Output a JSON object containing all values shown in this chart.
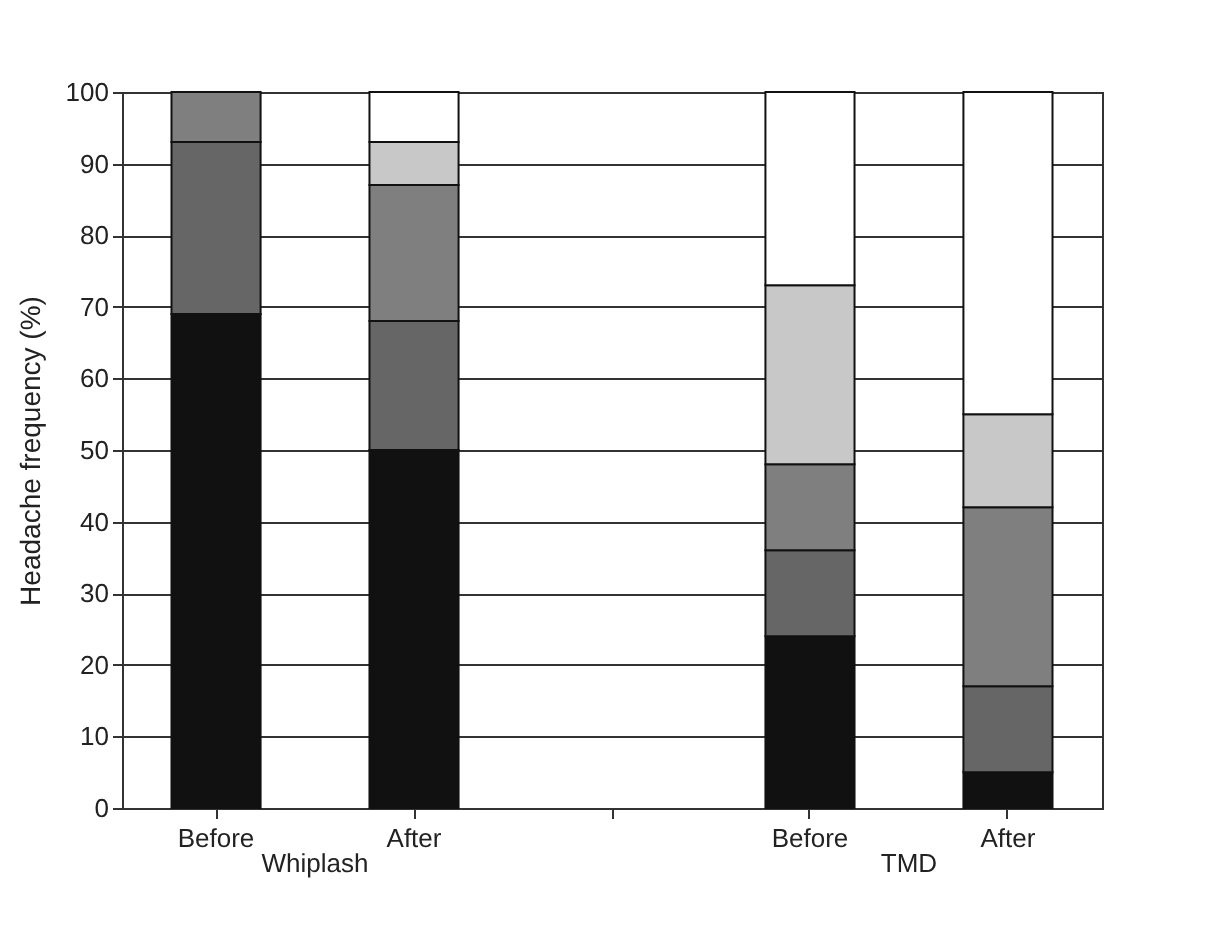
{
  "chart_data": {
    "type": "bar",
    "stacked": true,
    "ylabel": "Headache frequency (%)",
    "categories": [
      "Before",
      "After",
      null,
      "Before",
      "After"
    ],
    "series": [
      {
        "color": "#111111",
        "values": [
          69,
          50,
          null,
          24,
          5
        ]
      },
      {
        "color": "#666666",
        "values": [
          24,
          18,
          null,
          12,
          12
        ]
      },
      {
        "color": "#7f7f7f",
        "values": [
          7,
          19,
          null,
          12,
          25
        ]
      },
      {
        "color": "#c8c8c8",
        "values": [
          null,
          6,
          null,
          25,
          13
        ]
      },
      {
        "color": "#ffffff",
        "values": [
          null,
          7,
          null,
          27,
          45
        ]
      }
    ],
    "annotations": [
      "Whiplash",
      "TMD"
    ],
    "ylim": [
      0,
      100
    ],
    "yticks": [
      0,
      10,
      20,
      30,
      40,
      50,
      60,
      70,
      80,
      90,
      100
    ],
    "grid": "y"
  }
}
